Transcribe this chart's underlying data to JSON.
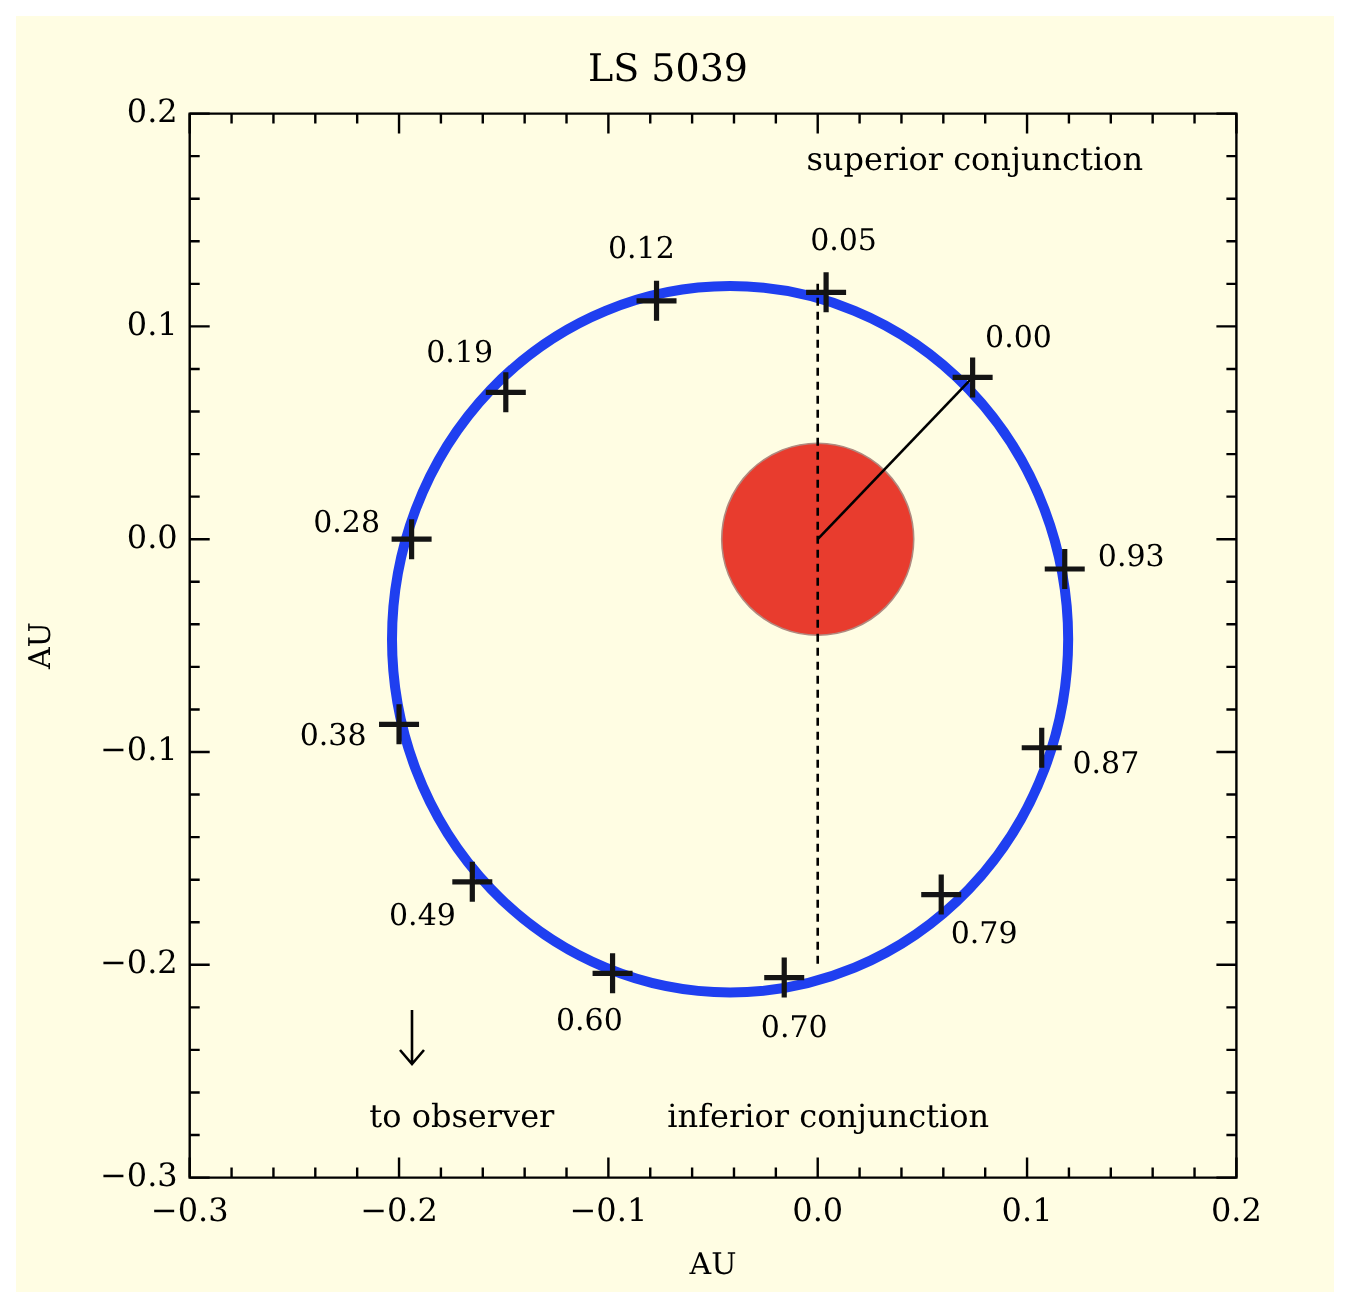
{
  "chart_data": {
    "type": "line",
    "title": "LS 5039",
    "xlabel": "AU",
    "ylabel": "AU",
    "xlim": [
      -0.3,
      0.2
    ],
    "xticks": [
      {
        "value": -0.3,
        "label": "−0.3"
      },
      {
        "value": -0.2,
        "label": "−0.2"
      },
      {
        "value": -0.1,
        "label": "−0.1"
      },
      {
        "value": 0,
        "label": "0.0"
      },
      {
        "value": 0.1,
        "label": "0.1"
      },
      {
        "value": 0.2,
        "label": "0.2"
      }
    ],
    "ylim": [
      -0.3,
      0.2
    ],
    "yticks": [
      {
        "value": -0.3,
        "label": "−0.3"
      },
      {
        "value": -0.2,
        "label": "−0.2"
      },
      {
        "value": -0.1,
        "label": "−0.1"
      },
      {
        "value": 0,
        "label": "0.0"
      },
      {
        "value": 0.1,
        "label": "0.1"
      },
      {
        "value": 0.2,
        "label": "0.2"
      }
    ],
    "grid": false,
    "legend": false,
    "series": [
      {
        "type": "scatter",
        "color": "#141414",
        "marker": "cross",
        "x": [
          0.074,
          0.004,
          -0.077,
          -0.149,
          -0.194,
          -0.2,
          -0.165,
          -0.098,
          -0.016,
          0.059,
          0.107,
          0.118
        ],
        "values": [
          0.076,
          0.116,
          0.112,
          0.069,
          0.0,
          -0.087,
          -0.161,
          -0.204,
          -0.206,
          -0.167,
          -0.098,
          -0.014
        ]
      },
      {
        "color": "#000000",
        "marker": "none",
        "x": [
          0,
          0.074
        ],
        "values": [
          0,
          0.076
        ]
      },
      {
        "color": "#000000",
        "marker": "none",
        "line_style": "dashed",
        "x": [
          0,
          0
        ],
        "values": [
          0.12,
          -0.2
        ]
      },
      {
        "type": "scatter",
        "color": "#e83c2e",
        "marker": "circle",
        "x": [
          0
        ],
        "values": [
          0
        ]
      }
    ],
    "annotations": [
      {
        "text": "0.00",
        "x": 0.074,
        "y": 0.076
      },
      {
        "text": "0.05",
        "x": 0.004,
        "y": 0.116
      },
      {
        "text": "0.12",
        "x": -0.077,
        "y": 0.112
      },
      {
        "text": "0.19",
        "x": -0.149,
        "y": 0.069
      },
      {
        "text": "0.28",
        "x": -0.194,
        "y": 0.0
      },
      {
        "text": "0.38",
        "x": -0.2,
        "y": -0.087
      },
      {
        "text": "0.49",
        "x": -0.165,
        "y": -0.161
      },
      {
        "text": "0.60",
        "x": -0.098,
        "y": -0.204
      },
      {
        "text": "0.70",
        "x": -0.016,
        "y": -0.206
      },
      {
        "text": "0.79",
        "x": 0.059,
        "y": -0.167
      },
      {
        "text": "0.87",
        "x": 0.107,
        "y": -0.098
      },
      {
        "text": "0.93",
        "x": 0.118,
        "y": -0.014
      },
      "superior conjunction",
      "inferior conjunction",
      "to observer"
    ]
  }
}
